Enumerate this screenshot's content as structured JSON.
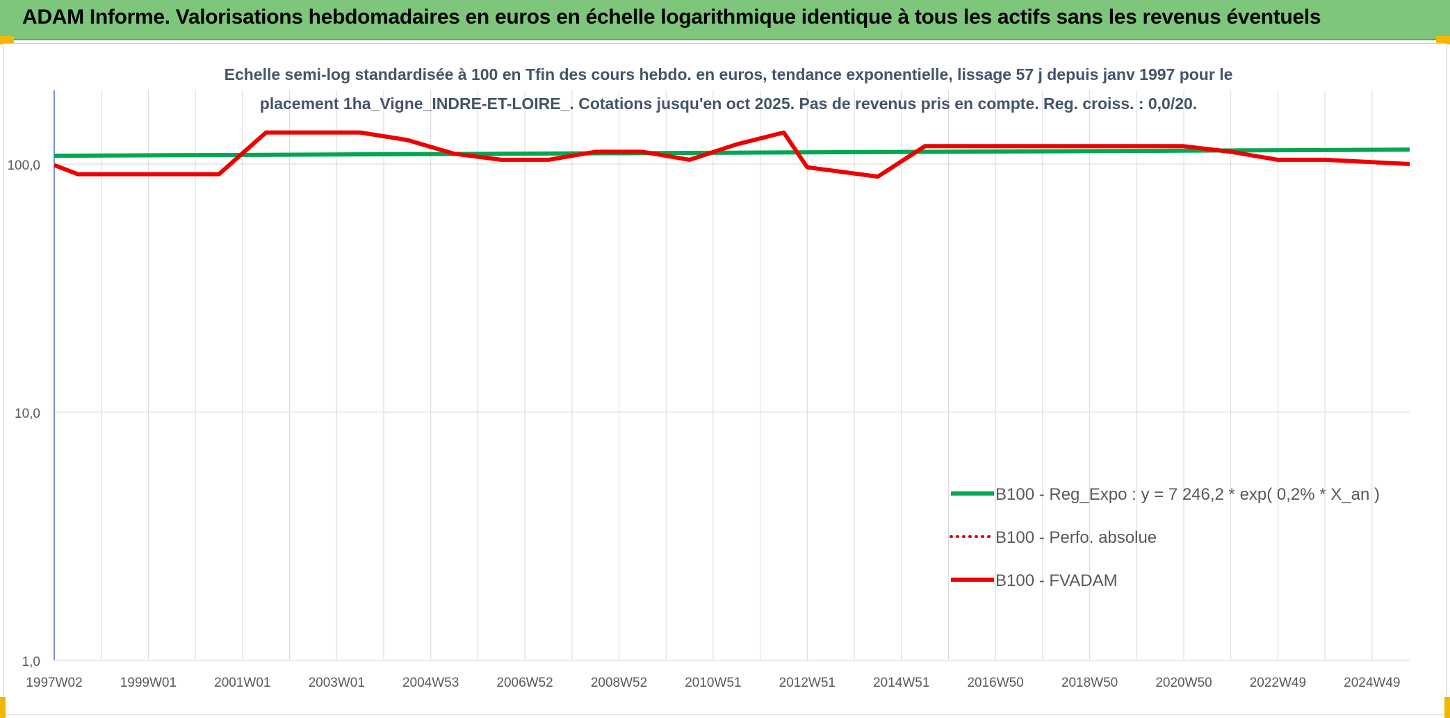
{
  "banner": {
    "title": "ADAM Informe. Valorisations hebdomadaires en euros en échelle logarithmique identique à tous les actifs sans les revenus éventuels"
  },
  "colors": {
    "banner_bg": "#7dc67b",
    "accent_marker": "#f2b705",
    "reg_expo": "#00a651",
    "perfo_absolue": "#e00000",
    "fvadam": "#ee0000",
    "grid": "#d9d9d9",
    "axis": "#4472c4",
    "text": "#595959",
    "title_text": "#44546a"
  },
  "chart_data": {
    "type": "line",
    "title_line1": "Echelle semi-log standardisée à 100 en Tfin des cours hebdo. en euros, tendance exponentielle, lissage 57 j depuis janv 1997 pour le",
    "title_line2": "placement 1ha_Vigne_INDRE-ET-LOIRE_. Cotations jusqu'en oct 2025. Pas de revenus pris en compte. Reg. croiss. : 0,0/20.",
    "y_scale": "log",
    "ylim": [
      1,
      200
    ],
    "y_ticks": [
      1,
      10,
      100
    ],
    "y_tick_labels": [
      "1,0",
      "10,0",
      "100,0"
    ],
    "x_range": [
      1997.0,
      2025.8
    ],
    "x_tick_labels": [
      "1997W02",
      "1999W01",
      "2001W01",
      "2003W01",
      "2004W53",
      "2006W52",
      "2008W52",
      "2010W51",
      "2012W51",
      "2014W51",
      "2016W50",
      "2018W50",
      "2020W50",
      "2022W49",
      "2024W49"
    ],
    "x_tick_years": [
      1997.0,
      1999.0,
      2001.0,
      2003.0,
      2005.0,
      2007.0,
      2009.0,
      2011.0,
      2013.0,
      2015.0,
      2017.0,
      2019.0,
      2021.0,
      2023.0,
      2025.0
    ],
    "grid": "vertical and horizontal",
    "legend_position": "bottom-right",
    "series": [
      {
        "name": "B100 - Reg_Expo : y = 7 246,2 * exp( 0,2% *  X_an )",
        "style": "solid-thick-green",
        "x": [
          1997.0,
          2025.8
        ],
        "y": [
          108.0,
          114.3
        ]
      },
      {
        "name": "B100 - Perfo. absolue",
        "style": "dotted-red",
        "x": [],
        "y": []
      },
      {
        "name": "B100 - FVADAM",
        "style": "solid-thick-red",
        "x": [
          1997.0,
          1997.5,
          2000.5,
          2001.5,
          2003.5,
          2004.5,
          2005.5,
          2006.5,
          2007.5,
          2008.5,
          2009.5,
          2010.5,
          2011.5,
          2012.5,
          2013.0,
          2014.5,
          2015.5,
          2021.0,
          2022.0,
          2023.0,
          2024.0,
          2025.8
        ],
        "y": [
          99.0,
          91.0,
          91.0,
          134.0,
          134.0,
          125.0,
          110.0,
          104.0,
          104.0,
          112.0,
          112.0,
          104.0,
          120.0,
          134.0,
          97.0,
          89.0,
          118.0,
          118.0,
          112.0,
          104.0,
          104.0,
          100.0
        ]
      }
    ]
  }
}
